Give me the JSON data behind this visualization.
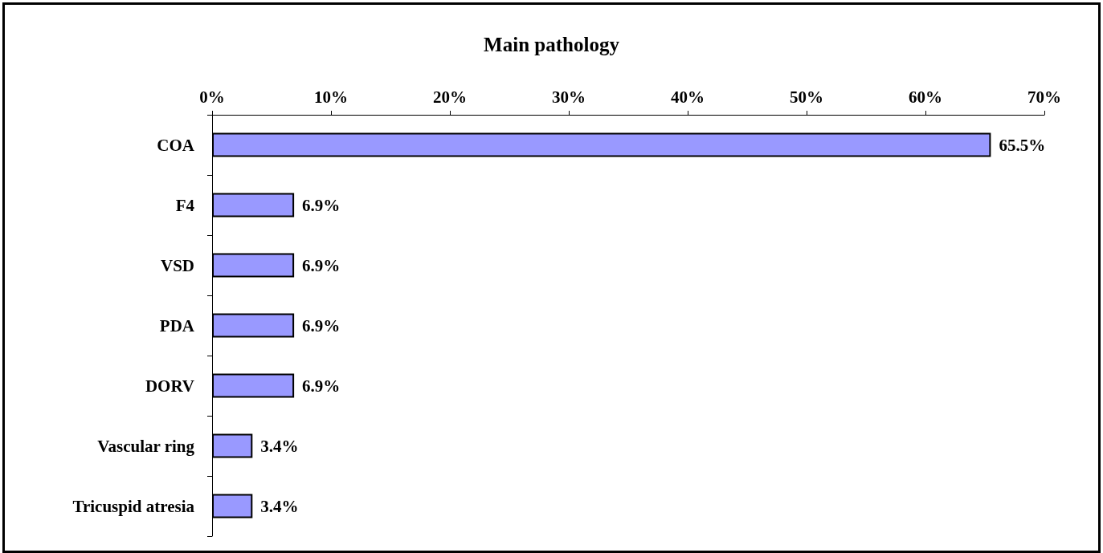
{
  "chart_data": {
    "type": "bar",
    "orientation": "horizontal",
    "title": "Main pathology",
    "categories": [
      "COA",
      "F4",
      "VSD",
      "PDA",
      "DORV",
      "Vascular ring",
      "Tricuspid atresia"
    ],
    "values": [
      65.5,
      6.9,
      6.9,
      6.9,
      6.9,
      3.4,
      3.4
    ],
    "value_labels": [
      "65.5%",
      "6.9%",
      "6.9%",
      "6.9%",
      "6.9%",
      "3.4%",
      "3.4%"
    ],
    "color": "#9999ff",
    "xlim": [
      0,
      70
    ],
    "xticks": [
      {
        "value": 0,
        "label": "0%"
      },
      {
        "value": 10,
        "label": "10%"
      },
      {
        "value": 20,
        "label": "20%"
      },
      {
        "value": 30,
        "label": "30%"
      },
      {
        "value": 40,
        "label": "40%"
      },
      {
        "value": 50,
        "label": "50%"
      },
      {
        "value": 60,
        "label": "60%"
      },
      {
        "value": 70,
        "label": "70%"
      }
    ],
    "grid": false
  }
}
